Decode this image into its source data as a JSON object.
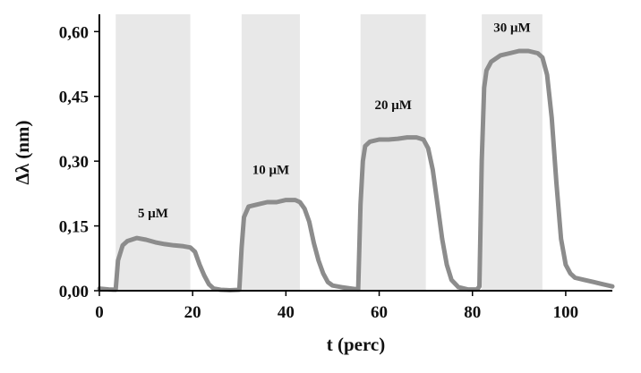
{
  "chart_data": {
    "type": "line",
    "title": "",
    "xlabel": "t (perc)",
    "ylabel": "Δλ (nm)",
    "xlim": [
      0,
      110
    ],
    "ylim": [
      0,
      0.64
    ],
    "x_ticks": [
      "0",
      "20",
      "40",
      "60",
      "80",
      "100"
    ],
    "y_ticks": [
      "0,00",
      "0,15",
      "0,30",
      "0,45",
      "0,60"
    ],
    "grid": false,
    "legend": "none",
    "colors": {
      "series": "#8c8c8c",
      "band": "#e8e8e8",
      "axis": "#000000"
    },
    "bands": [
      {
        "label": "5 μM",
        "x_start": 3.5,
        "x_end": 19.5,
        "label_y": 0.17
      },
      {
        "label": "10 μM",
        "x_start": 30.5,
        "x_end": 43,
        "label_y": 0.27
      },
      {
        "label": "20 μM",
        "x_start": 56,
        "x_end": 70,
        "label_y": 0.42
      },
      {
        "label": "30 μM",
        "x_start": 82,
        "x_end": 95,
        "label_y": 0.6
      }
    ],
    "series": [
      {
        "x": [
          0,
          2,
          3.5,
          4,
          5,
          6,
          8,
          10,
          12,
          14,
          16,
          18,
          19.5,
          20.5,
          21.5,
          22.5,
          23.5,
          24.5,
          26,
          28,
          30,
          30.5,
          31,
          32,
          34,
          36,
          38,
          40,
          42,
          43,
          44,
          45,
          46,
          47,
          48,
          49,
          50,
          52,
          54,
          55.5,
          56,
          56.5,
          57,
          58,
          60,
          62,
          64,
          66,
          68,
          69.5,
          70.5,
          71.5,
          72.5,
          73.5,
          74.5,
          75.5,
          77,
          79,
          81,
          81.5,
          82,
          82.5,
          83,
          84,
          86,
          88,
          90,
          92,
          94,
          95,
          96,
          97,
          98,
          99,
          100,
          101,
          102,
          104,
          106,
          108,
          110
        ],
        "y": [
          0.005,
          0.003,
          0.002,
          0.07,
          0.105,
          0.115,
          0.122,
          0.118,
          0.112,
          0.108,
          0.105,
          0.103,
          0.1,
          0.09,
          0.06,
          0.035,
          0.015,
          0.005,
          0.002,
          0.001,
          0.002,
          0.1,
          0.17,
          0.195,
          0.2,
          0.205,
          0.205,
          0.21,
          0.21,
          0.205,
          0.19,
          0.16,
          0.11,
          0.07,
          0.04,
          0.02,
          0.012,
          0.008,
          0.005,
          0.003,
          0.2,
          0.3,
          0.335,
          0.345,
          0.35,
          0.35,
          0.352,
          0.355,
          0.355,
          0.35,
          0.33,
          0.28,
          0.2,
          0.12,
          0.06,
          0.025,
          0.008,
          0.003,
          0.003,
          0.01,
          0.3,
          0.47,
          0.51,
          0.53,
          0.545,
          0.55,
          0.555,
          0.555,
          0.55,
          0.54,
          0.5,
          0.4,
          0.25,
          0.12,
          0.06,
          0.04,
          0.03,
          0.025,
          0.02,
          0.015,
          0.01
        ]
      }
    ]
  }
}
